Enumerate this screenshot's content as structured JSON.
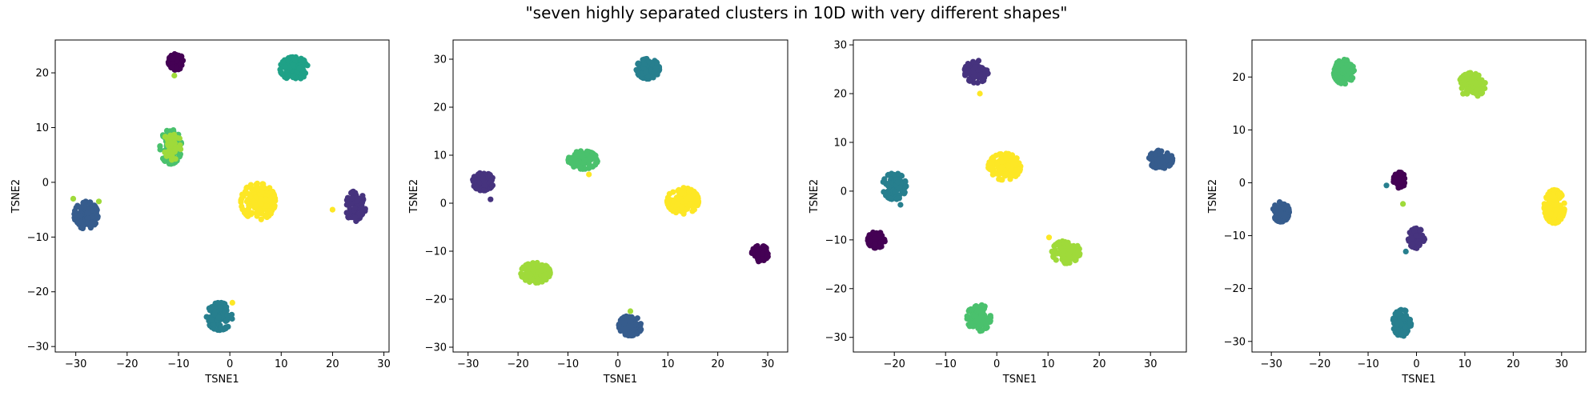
{
  "figure": {
    "title": "\"seven highly separated clusters in 10D with very different shapes\""
  },
  "chart_data": [
    {
      "type": "scatter",
      "xlabel": "TSNE1",
      "ylabel": "TSNE2",
      "xlim": [
        -34,
        31
      ],
      "ylim": [
        -31,
        26
      ],
      "xticks": [
        -30,
        -20,
        -10,
        0,
        10,
        20,
        30
      ],
      "yticks": [
        -30,
        -20,
        -10,
        0,
        10,
        20
      ],
      "grid": false,
      "clusters": [
        {
          "color": "#440154",
          "cx": -10.5,
          "cy": 22,
          "rx": 1.4,
          "ry": 1.4,
          "n": 70
        },
        {
          "color": "#46337e",
          "cx": 24.5,
          "cy": -4.5,
          "rx": 1.8,
          "ry": 2.8,
          "n": 90
        },
        {
          "color": "#365c8d",
          "cx": -28,
          "cy": -6,
          "rx": 2.2,
          "ry": 2.4,
          "n": 110
        },
        {
          "color": "#277f8e",
          "cx": -2,
          "cy": -24.5,
          "rx": 2.4,
          "ry": 2.4,
          "n": 110
        },
        {
          "color": "#1fa187",
          "cx": 12.5,
          "cy": 20.8,
          "rx": 2.6,
          "ry": 2.0,
          "n": 110
        },
        {
          "color": "#4ac16d",
          "cx": -11.5,
          "cy": 6.5,
          "rx": 2.0,
          "ry": 3.0,
          "n": 110
        },
        {
          "color": "#9fda3a",
          "cx": -11.2,
          "cy": 6.8,
          "rx": 1.6,
          "ry": 2.6,
          "n": 60
        },
        {
          "color": "#fde725",
          "cx": 5.5,
          "cy": -3.5,
          "rx": 3.2,
          "ry": 3.2,
          "n": 160
        }
      ],
      "outliers": [
        {
          "color": "#9fda3a",
          "x": -10.8,
          "y": 19.5
        },
        {
          "color": "#9fda3a",
          "x": -30.5,
          "y": -3
        },
        {
          "color": "#9fda3a",
          "x": -25.5,
          "y": -3.5
        },
        {
          "color": "#fde725",
          "x": 0.5,
          "y": -22
        },
        {
          "color": "#fde725",
          "x": 20,
          "y": -5
        }
      ]
    },
    {
      "type": "scatter",
      "xlabel": "TSNE1",
      "ylabel": "TSNE2",
      "xlim": [
        -33,
        34
      ],
      "ylim": [
        -31,
        34
      ],
      "xticks": [
        -30,
        -20,
        -10,
        0,
        10,
        20,
        30
      ],
      "yticks": [
        -30,
        -20,
        -10,
        0,
        10,
        20,
        30
      ],
      "grid": false,
      "clusters": [
        {
          "color": "#440154",
          "cx": 28.5,
          "cy": -10.5,
          "rx": 1.6,
          "ry": 1.6,
          "n": 70
        },
        {
          "color": "#46337e",
          "cx": -27,
          "cy": 4.5,
          "rx": 2.0,
          "ry": 1.8,
          "n": 90
        },
        {
          "color": "#365c8d",
          "cx": 2.5,
          "cy": -25.5,
          "rx": 2.2,
          "ry": 2.0,
          "n": 110
        },
        {
          "color": "#277f8e",
          "cx": 6,
          "cy": 28,
          "rx": 2.2,
          "ry": 2.0,
          "n": 110
        },
        {
          "color": "#4ac16d",
          "cx": -7,
          "cy": 9,
          "rx": 2.8,
          "ry": 1.8,
          "n": 120
        },
        {
          "color": "#9fda3a",
          "cx": -16.5,
          "cy": -14.5,
          "rx": 2.8,
          "ry": 2.0,
          "n": 120
        },
        {
          "color": "#fde725",
          "cx": 13,
          "cy": 0.5,
          "rx": 3.0,
          "ry": 2.6,
          "n": 160
        }
      ],
      "outliers": [
        {
          "color": "#46337e",
          "x": -25.5,
          "y": 0.8
        },
        {
          "color": "#fde725",
          "x": -5.8,
          "y": 6
        },
        {
          "color": "#9fda3a",
          "x": 2.5,
          "y": -22.5
        }
      ]
    },
    {
      "type": "scatter",
      "xlabel": "TSNE1",
      "ylabel": "TSNE2",
      "xlim": [
        -28,
        37
      ],
      "ylim": [
        -33,
        31
      ],
      "xticks": [
        -20,
        -10,
        0,
        10,
        20,
        30
      ],
      "yticks": [
        -30,
        -20,
        -10,
        0,
        10,
        20,
        30
      ],
      "grid": false,
      "clusters": [
        {
          "color": "#440154",
          "cx": -23.5,
          "cy": -10,
          "rx": 1.6,
          "ry": 1.6,
          "n": 70
        },
        {
          "color": "#46337e",
          "cx": -4,
          "cy": 24.5,
          "rx": 2.2,
          "ry": 2.2,
          "n": 100
        },
        {
          "color": "#365c8d",
          "cx": 32,
          "cy": 6.5,
          "rx": 2.2,
          "ry": 1.8,
          "n": 110
        },
        {
          "color": "#277f8e",
          "cx": -20,
          "cy": 1,
          "rx": 2.2,
          "ry": 2.6,
          "n": 110
        },
        {
          "color": "#4ac16d",
          "cx": -3.5,
          "cy": -26,
          "rx": 2.2,
          "ry": 2.6,
          "n": 110
        },
        {
          "color": "#9fda3a",
          "cx": 13.5,
          "cy": -12.5,
          "rx": 2.6,
          "ry": 2.2,
          "n": 120
        },
        {
          "color": "#fde725",
          "cx": 1.5,
          "cy": 5,
          "rx": 3.0,
          "ry": 2.6,
          "n": 160
        }
      ],
      "outliers": [
        {
          "color": "#fde725",
          "x": -3.3,
          "y": 20
        },
        {
          "color": "#fde725",
          "x": 10.2,
          "y": -9.5
        },
        {
          "color": "#277f8e",
          "x": -18.8,
          "y": -2.8
        }
      ]
    },
    {
      "type": "scatter",
      "xlabel": "TSNE1",
      "ylabel": "TSNE2",
      "xlim": [
        -34,
        35
      ],
      "ylim": [
        -32,
        27
      ],
      "xticks": [
        -30,
        -20,
        -10,
        0,
        10,
        20,
        30
      ],
      "yticks": [
        -30,
        -20,
        -10,
        0,
        10,
        20
      ],
      "grid": false,
      "clusters": [
        {
          "color": "#440154",
          "cx": -3.5,
          "cy": 0.5,
          "rx": 1.2,
          "ry": 1.4,
          "n": 60
        },
        {
          "color": "#46337e",
          "cx": 0,
          "cy": -10.5,
          "rx": 1.6,
          "ry": 1.8,
          "n": 80
        },
        {
          "color": "#365c8d",
          "cx": -28,
          "cy": -5.5,
          "rx": 1.6,
          "ry": 1.8,
          "n": 90
        },
        {
          "color": "#277f8e",
          "cx": -3,
          "cy": -26.5,
          "rx": 1.8,
          "ry": 2.4,
          "n": 100
        },
        {
          "color": "#4ac16d",
          "cx": -15,
          "cy": 21,
          "rx": 2.0,
          "ry": 2.2,
          "n": 110
        },
        {
          "color": "#9fda3a",
          "cx": 11.5,
          "cy": 18.5,
          "rx": 2.6,
          "ry": 2.2,
          "n": 120
        },
        {
          "color": "#fde725",
          "cx": 28.5,
          "cy": -4.5,
          "rx": 2.0,
          "ry": 3.0,
          "n": 160
        }
      ],
      "outliers": [
        {
          "color": "#277f8e",
          "x": -6.2,
          "y": -0.5
        },
        {
          "color": "#9fda3a",
          "x": -2.8,
          "y": -4
        },
        {
          "color": "#277f8e",
          "x": -2.2,
          "y": -13
        }
      ]
    }
  ]
}
